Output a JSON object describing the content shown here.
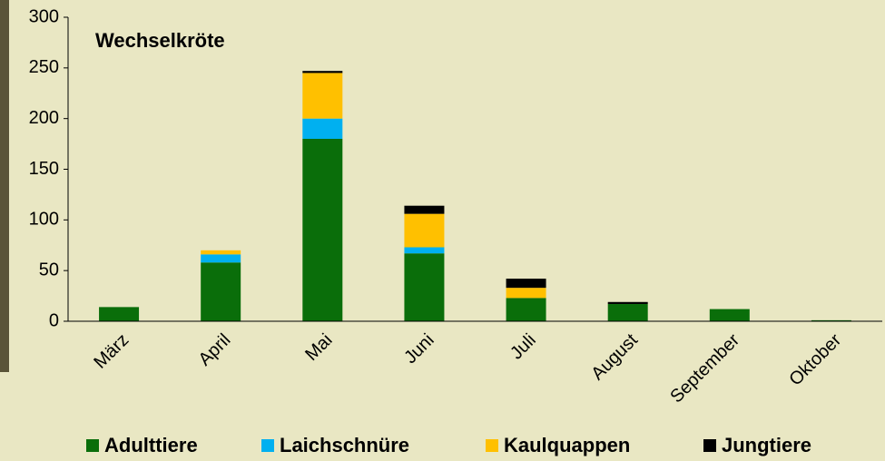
{
  "chart_data": {
    "type": "stacked_bar",
    "title": "Wechselkröte",
    "categories": [
      "März",
      "April",
      "Mai",
      "Juni",
      "Juli",
      "August",
      "September",
      "Oktober"
    ],
    "series": [
      {
        "name": "Adulttiere",
        "color": "#0a6e0a",
        "values": [
          14,
          58,
          180,
          67,
          23,
          17,
          12,
          1
        ]
      },
      {
        "name": "Laichschnüre",
        "color": "#00b0f0",
        "values": [
          0,
          8,
          20,
          6,
          0,
          0,
          0,
          0
        ]
      },
      {
        "name": "Kaulquappen",
        "color": "#ffc000",
        "values": [
          0,
          4,
          45,
          33,
          10,
          0,
          0,
          0
        ]
      },
      {
        "name": "Jungtiere",
        "color": "#000000",
        "values": [
          0,
          0,
          2,
          8,
          9,
          2,
          0,
          0
        ]
      }
    ],
    "ylim": [
      0,
      300
    ],
    "yticks": [
      0,
      50,
      100,
      150,
      200,
      250,
      300
    ],
    "grid": false,
    "legend": "bottom"
  }
}
